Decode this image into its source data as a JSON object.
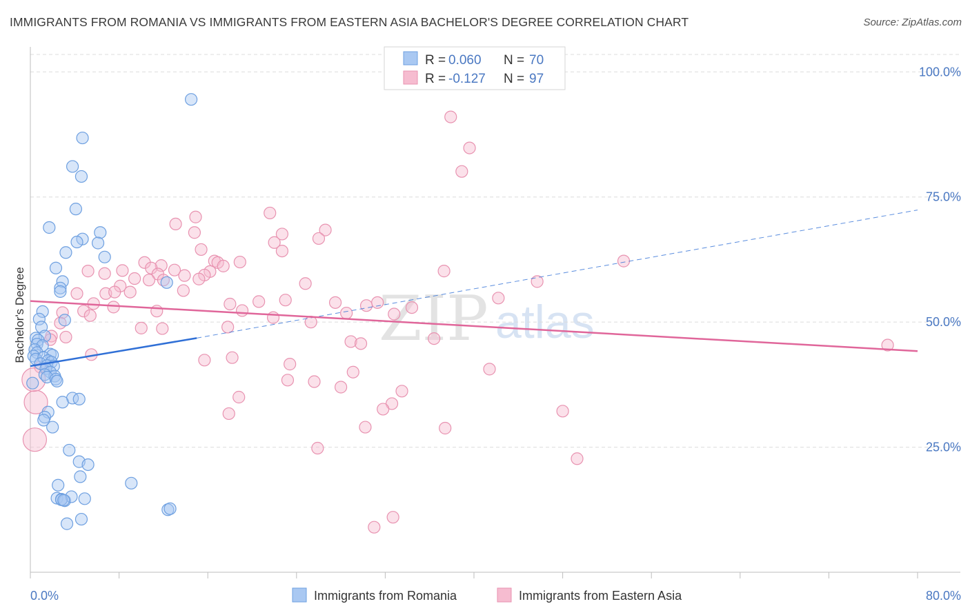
{
  "title": "IMMIGRANTS FROM ROMANIA VS IMMIGRANTS FROM EASTERN ASIA BACHELOR'S DEGREE CORRELATION CHART",
  "source": "Source: ZipAtlas.com",
  "watermark": {
    "zip": "ZIP",
    "atlas": "atlas"
  },
  "colors": {
    "romania_fill": "#a9c8f2",
    "romania_stroke": "#6d9fe0",
    "romania_line": "#2f6fd6",
    "asia_fill": "#f6bcd0",
    "asia_stroke": "#e892b0",
    "asia_line": "#e0669a",
    "tick_blue": "#4a78c2",
    "grid": "#dcdcdc"
  },
  "legend": {
    "rows": [
      {
        "r_label": "R =",
        "r_value": "0.060",
        "n_label": "N =",
        "n_value": "70"
      },
      {
        "r_label": "R =",
        "r_value": "-0.127",
        "n_label": "N =",
        "n_value": "97"
      }
    ]
  },
  "chart_data": {
    "type": "scatter",
    "title": "IMMIGRANTS FROM ROMANIA VS IMMIGRANTS FROM EASTERN ASIA BACHELOR'S DEGREE CORRELATION CHART",
    "xlabel": "",
    "ylabel": "Bachelor's Degree",
    "xlim": [
      0,
      80
    ],
    "ylim": [
      0,
      105
    ],
    "x_tick_labels": [
      "0.0%",
      "80.0%"
    ],
    "y_ticks": [
      {
        "value": 25,
        "label": "25.0%"
      },
      {
        "value": 50,
        "label": "50.0%"
      },
      {
        "value": 75,
        "label": "75.0%"
      },
      {
        "value": 100,
        "label": "100.0%"
      }
    ],
    "series": [
      {
        "name": "Immigrants from Romania",
        "R": 0.06,
        "N": 70,
        "trend": {
          "x0": 0,
          "y0": 41.2,
          "x1": 15,
          "y1": 46.8,
          "dashed_to_x": 80,
          "dashed_to_y": 72.4
        },
        "points": [
          [
            14.5,
            94.5
          ],
          [
            4.7,
            86.8
          ],
          [
            3.8,
            81.1
          ],
          [
            4.6,
            79.1
          ],
          [
            4.1,
            72.6
          ],
          [
            1.7,
            68.9
          ],
          [
            6.3,
            67.9
          ],
          [
            4.7,
            66.6
          ],
          [
            4.2,
            66.0
          ],
          [
            6.1,
            65.8
          ],
          [
            3.2,
            63.9
          ],
          [
            6.7,
            63.0
          ],
          [
            2.3,
            60.8
          ],
          [
            12.3,
            57.9
          ],
          [
            2.9,
            58.1
          ],
          [
            2.7,
            56.8
          ],
          [
            2.7,
            56.1
          ],
          [
            1.1,
            52.1
          ],
          [
            3.1,
            50.4
          ],
          [
            0.8,
            50.6
          ],
          [
            1.0,
            49.0
          ],
          [
            1.3,
            47.2
          ],
          [
            0.5,
            46.8
          ],
          [
            0.7,
            46.4
          ],
          [
            0.6,
            45.6
          ],
          [
            1.1,
            45.3
          ],
          [
            0.4,
            44.5
          ],
          [
            0.6,
            43.9
          ],
          [
            1.8,
            43.6
          ],
          [
            0.3,
            43.2
          ],
          [
            2.0,
            43.4
          ],
          [
            0.5,
            42.6
          ],
          [
            1.2,
            42.9
          ],
          [
            1.6,
            42.3
          ],
          [
            1.9,
            42.0
          ],
          [
            0.9,
            41.7
          ],
          [
            1.5,
            41.3
          ],
          [
            2.1,
            41.2
          ],
          [
            1.4,
            40.7
          ],
          [
            1.8,
            40.0
          ],
          [
            1.3,
            39.5
          ],
          [
            2.2,
            39.2
          ],
          [
            1.5,
            39.0
          ],
          [
            2.3,
            38.6
          ],
          [
            2.4,
            38.2
          ],
          [
            0.2,
            37.8
          ],
          [
            3.8,
            34.8
          ],
          [
            2.9,
            34.0
          ],
          [
            4.4,
            34.6
          ],
          [
            1.6,
            32.0
          ],
          [
            1.3,
            31.0
          ],
          [
            1.2,
            30.4
          ],
          [
            2.0,
            29.0
          ],
          [
            3.5,
            24.4
          ],
          [
            4.4,
            22.1
          ],
          [
            5.2,
            21.5
          ],
          [
            4.5,
            19.1
          ],
          [
            9.1,
            17.8
          ],
          [
            2.5,
            17.4
          ],
          [
            2.4,
            14.8
          ],
          [
            2.8,
            14.6
          ],
          [
            3.1,
            14.3
          ],
          [
            3.7,
            15.1
          ],
          [
            4.9,
            14.7
          ],
          [
            12.4,
            12.5
          ],
          [
            12.6,
            12.7
          ],
          [
            3.3,
            9.7
          ],
          [
            4.6,
            10.6
          ],
          [
            2.8,
            14.5
          ],
          [
            3.0,
            14.4
          ]
        ]
      },
      {
        "name": "Immigrants from Eastern Asia",
        "R": -0.127,
        "N": 97,
        "trend": {
          "x0": 0,
          "y0": 54.2,
          "x1": 80,
          "y1": 44.2
        },
        "points": [
          [
            37.9,
            91.0
          ],
          [
            39.6,
            84.8
          ],
          [
            38.9,
            80.1
          ],
          [
            21.6,
            71.8
          ],
          [
            14.9,
            71.0
          ],
          [
            13.1,
            69.6
          ],
          [
            26.6,
            68.4
          ],
          [
            14.8,
            67.9
          ],
          [
            22.7,
            67.6
          ],
          [
            26.0,
            66.7
          ],
          [
            22.0,
            65.9
          ],
          [
            15.4,
            64.5
          ],
          [
            22.7,
            64.2
          ],
          [
            16.6,
            62.2
          ],
          [
            18.9,
            62.0
          ],
          [
            16.9,
            61.9
          ],
          [
            10.3,
            61.9
          ],
          [
            11.8,
            61.3
          ],
          [
            10.9,
            60.8
          ],
          [
            53.5,
            62.2
          ],
          [
            17.4,
            61.2
          ],
          [
            5.2,
            60.2
          ],
          [
            8.3,
            60.3
          ],
          [
            13.0,
            60.4
          ],
          [
            16.2,
            60.1
          ],
          [
            6.7,
            59.7
          ],
          [
            37.3,
            60.2
          ],
          [
            11.5,
            59.6
          ],
          [
            15.7,
            59.4
          ],
          [
            13.9,
            59.3
          ],
          [
            9.4,
            58.7
          ],
          [
            15.2,
            58.6
          ],
          [
            10.7,
            58.4
          ],
          [
            12.0,
            58.4
          ],
          [
            24.8,
            57.7
          ],
          [
            45.7,
            58.1
          ],
          [
            8.1,
            57.2
          ],
          [
            9.0,
            56.0
          ],
          [
            6.8,
            55.7
          ],
          [
            7.6,
            56.0
          ],
          [
            4.2,
            55.7
          ],
          [
            13.8,
            56.3
          ],
          [
            42.2,
            54.8
          ],
          [
            23.0,
            54.4
          ],
          [
            20.6,
            54.1
          ],
          [
            27.5,
            53.9
          ],
          [
            31.3,
            53.9
          ],
          [
            18.0,
            53.6
          ],
          [
            30.3,
            53.3
          ],
          [
            5.7,
            53.7
          ],
          [
            34.4,
            52.9
          ],
          [
            7.5,
            53.0
          ],
          [
            19.1,
            52.3
          ],
          [
            11.4,
            52.2
          ],
          [
            4.8,
            52.2
          ],
          [
            2.9,
            51.9
          ],
          [
            28.5,
            51.8
          ],
          [
            5.4,
            51.3
          ],
          [
            32.8,
            51.6
          ],
          [
            21.9,
            50.9
          ],
          [
            25.3,
            50.0
          ],
          [
            2.7,
            49.8
          ],
          [
            17.8,
            49.0
          ],
          [
            10.0,
            48.8
          ],
          [
            11.9,
            48.7
          ],
          [
            1.9,
            47.2
          ],
          [
            3.2,
            47.0
          ],
          [
            1.8,
            46.5
          ],
          [
            36.4,
            46.7
          ],
          [
            28.9,
            46.1
          ],
          [
            29.8,
            45.7
          ],
          [
            77.3,
            45.4
          ],
          [
            5.5,
            43.5
          ],
          [
            18.2,
            42.9
          ],
          [
            15.7,
            42.4
          ],
          [
            23.4,
            41.6
          ],
          [
            41.4,
            40.6
          ],
          [
            29.1,
            40.0
          ],
          [
            0.9,
            41.0
          ],
          [
            23.2,
            38.4
          ],
          [
            25.6,
            38.1
          ],
          [
            28.0,
            37.0
          ],
          [
            33.5,
            36.2
          ],
          [
            18.8,
            35.0
          ],
          [
            32.6,
            33.7
          ],
          [
            31.8,
            32.6
          ],
          [
            17.9,
            31.7
          ],
          [
            48.0,
            32.2
          ],
          [
            30.2,
            29.0
          ],
          [
            37.4,
            28.8
          ],
          [
            25.9,
            24.8
          ],
          [
            49.3,
            22.7
          ],
          [
            32.7,
            11.0
          ],
          [
            31.0,
            9.0
          ],
          [
            0.5,
            34.0
          ],
          [
            0.4,
            26.5
          ],
          [
            0.3,
            38.5
          ]
        ]
      }
    ],
    "legend_labels": [
      "Immigrants from Romania",
      "Immigrants from Eastern Asia"
    ]
  }
}
